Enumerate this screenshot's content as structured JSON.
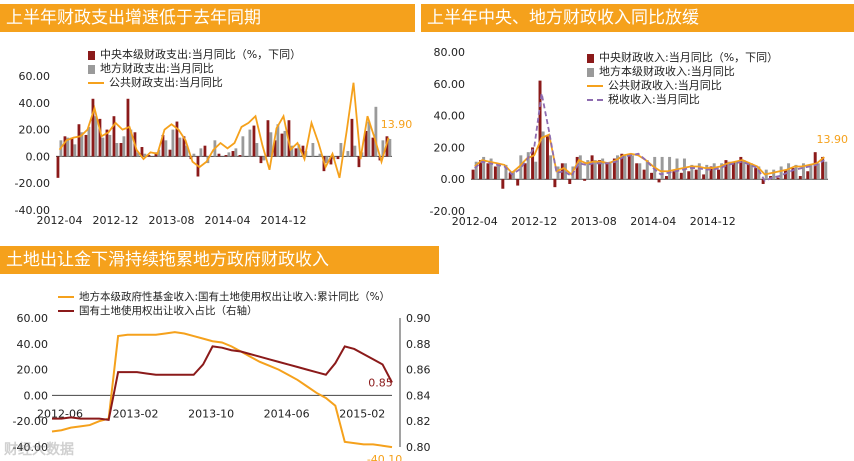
{
  "watermark": "财经大数据",
  "chart_data": [
    {
      "type": "bar",
      "title": "上半年财政支出增速低于去年同期",
      "ylim": [
        -40,
        60
      ],
      "yticks": [
        "60.00",
        "40.00",
        "20.00",
        "0.00",
        "-20.00",
        "-40.00"
      ],
      "xticks": [
        "2012-04",
        "2012-12",
        "2013-08",
        "2014-04",
        "2014-12"
      ],
      "annotation": "13.90",
      "colors": {
        "central": "#8b1a1a",
        "local": "#9a9a9a",
        "public": "#f5a11c"
      },
      "series": [
        {
          "name": "中央本级财政支出:当月同比（%，下同）",
          "kind": "bar",
          "values": [
            -16,
            15,
            14,
            24,
            16,
            43,
            28,
            20,
            30,
            10,
            43,
            18,
            7,
            1,
            3,
            16,
            5,
            26,
            15,
            -2,
            -15,
            8,
            0,
            2,
            1,
            4,
            1,
            0,
            23,
            -5,
            27,
            12,
            17,
            27,
            6,
            8,
            0,
            0,
            -11,
            -6,
            -2,
            0,
            28,
            -8,
            19,
            14,
            -3,
            15
          ]
        },
        {
          "name": "地方财政支出:当月同比",
          "kind": "bar",
          "values": [
            12,
            14,
            9,
            18,
            22,
            30,
            14,
            16,
            10,
            15,
            20,
            3,
            2,
            0,
            5,
            12,
            20,
            14,
            8,
            2,
            6,
            -5,
            12,
            0,
            3,
            6,
            15,
            20,
            10,
            -3,
            18,
            24,
            19,
            8,
            9,
            4,
            10,
            2,
            -5,
            -2,
            10,
            4,
            8,
            3,
            26,
            37,
            12,
            13
          ]
        },
        {
          "name": "公共财政支出:当月同比",
          "kind": "line",
          "values": [
            5,
            12,
            14,
            15,
            20,
            36,
            15,
            18,
            25,
            20,
            22,
            5,
            -2,
            3,
            2,
            20,
            24,
            20,
            12,
            -4,
            -8,
            -4,
            5,
            10,
            6,
            10,
            22,
            25,
            30,
            8,
            -10,
            21,
            30,
            5,
            10,
            -2,
            25,
            10,
            -8,
            2,
            -16,
            18,
            55,
            -2,
            30,
            14,
            -4,
            13.9
          ]
        }
      ]
    },
    {
      "type": "bar",
      "title": "上半年中央、地方财政收入同比放缓",
      "ylim": [
        -20,
        80
      ],
      "yticks": [
        "80.00",
        "60.00",
        "40.00",
        "20.00",
        "0.00",
        "-20.00"
      ],
      "xticks": [
        "2012-04",
        "2012-12",
        "2013-08",
        "2014-04",
        "2014-12"
      ],
      "annotation": "13.90",
      "colors": {
        "central": "#8b1a1a",
        "local": "#9a9a9a",
        "public": "#f5a11c",
        "tax": "#8e6cb0"
      },
      "series": [
        {
          "name": "中央财政收入:当月同比（%，下同）",
          "kind": "bar",
          "values": [
            6,
            12,
            10,
            8,
            -6,
            4,
            -4,
            10,
            20,
            62,
            27,
            -5,
            10,
            -3,
            14,
            -1,
            15,
            12,
            10,
            13,
            16,
            16,
            10,
            6,
            4,
            -2,
            2,
            5,
            4,
            5,
            6,
            3,
            8,
            6,
            12,
            11,
            14,
            10,
            7,
            -3,
            2,
            1,
            6,
            7,
            2,
            5,
            17,
            14
          ]
        },
        {
          "name": "地方本级财政收入:当月同比",
          "kind": "bar",
          "values": [
            11,
            14,
            13,
            10,
            9,
            5,
            15,
            17,
            11,
            30,
            15,
            8,
            10,
            8,
            15,
            12,
            12,
            13,
            11,
            15,
            15,
            15,
            10,
            12,
            14,
            14,
            14,
            13,
            13,
            9,
            10,
            9,
            10,
            10,
            11,
            11,
            12,
            10,
            8,
            6,
            6,
            8,
            10,
            9,
            10,
            9,
            10,
            11
          ]
        },
        {
          "name": "公共财政收入:当月同比",
          "kind": "line",
          "values": [
            8,
            12,
            11,
            10,
            9,
            4,
            8,
            13,
            15,
            26,
            28,
            5,
            7,
            3,
            12,
            10,
            11,
            11,
            10,
            12,
            15,
            16,
            15,
            12,
            8,
            5,
            5,
            6,
            7,
            8,
            8,
            7,
            7,
            8,
            10,
            11,
            12,
            10,
            8,
            3,
            4,
            5,
            6,
            8,
            8,
            9,
            10,
            13.9
          ]
        },
        {
          "name": "税收收入:当月同比",
          "kind": "dash",
          "values": [
            7,
            11,
            10,
            9,
            8,
            3,
            6,
            12,
            20,
            54,
            30,
            4,
            5,
            2,
            10,
            9,
            10,
            10,
            10,
            11,
            14,
            15,
            16,
            12,
            7,
            3,
            4,
            5,
            6,
            7,
            7,
            6,
            6,
            7,
            9,
            10,
            11,
            9,
            7,
            -1,
            1,
            2,
            4,
            6,
            7,
            8,
            9,
            12
          ]
        }
      ]
    },
    {
      "type": "line",
      "title": "土地出让金下滑持续拖累地方政府财政收入",
      "ylim": [
        -40,
        60
      ],
      "y2lim": [
        0.8,
        0.9
      ],
      "yticks": [
        "60.00",
        "40.00",
        "20.00",
        "0.00",
        "-20.00",
        "-40.00"
      ],
      "y2ticks": [
        "0.90",
        "0.88",
        "0.86",
        "0.84",
        "0.82",
        "0.80"
      ],
      "xticks": [
        "2012-06",
        "2013-02",
        "2013-10",
        "2014-06",
        "2015-02"
      ],
      "annotation_left": "-40.10",
      "annotation_right": "0.85",
      "colors": {
        "fund": "#f5a11c",
        "share": "#8b1a1a"
      },
      "series": [
        {
          "name": "地方本级政府性基金收入:国有土地使用权出让收入:累计同比（%）",
          "axis": "left",
          "x": [
            0,
            1,
            2,
            3,
            4,
            5,
            6,
            7,
            8,
            9,
            10,
            11,
            12,
            13,
            14,
            15,
            16,
            17,
            18,
            19,
            20,
            21,
            22,
            23,
            24,
            25,
            26,
            27,
            28,
            29,
            30,
            31,
            32,
            33,
            34,
            35,
            36
          ],
          "values": [
            -28,
            -27,
            -25,
            -24,
            -23,
            -20,
            -18,
            46,
            47,
            47,
            47,
            47,
            48,
            49,
            48,
            46,
            44,
            42,
            41,
            38,
            34,
            30,
            26,
            23,
            20,
            16,
            12,
            7,
            2,
            -2,
            -8,
            -36,
            -37,
            -38,
            -38,
            -39,
            -40.1
          ]
        },
        {
          "name": "国有土地使用权出让收入占比（右轴）",
          "axis": "right",
          "x": [
            0,
            1,
            2,
            3,
            4,
            5,
            6,
            7,
            8,
            9,
            10,
            11,
            12,
            13,
            14,
            15,
            16,
            17,
            18,
            19,
            20,
            21,
            22,
            23,
            24,
            25,
            26,
            27,
            28,
            29,
            30,
            31,
            32,
            33,
            34,
            35,
            36
          ],
          "values": [
            0.822,
            0.822,
            0.823,
            0.822,
            0.822,
            0.822,
            0.821,
            0.858,
            0.858,
            0.858,
            0.857,
            0.856,
            0.856,
            0.856,
            0.856,
            0.856,
            0.864,
            0.878,
            0.877,
            0.875,
            0.874,
            0.872,
            0.87,
            0.868,
            0.866,
            0.864,
            0.862,
            0.86,
            0.858,
            0.856,
            0.865,
            0.878,
            0.876,
            0.872,
            0.868,
            0.864,
            0.85
          ]
        }
      ]
    }
  ]
}
